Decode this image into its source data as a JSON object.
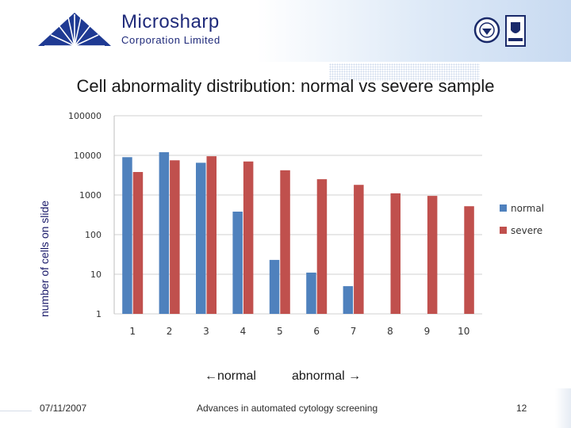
{
  "header": {
    "company_name": "Microsharp",
    "company_subtitle": "Corporation Limited"
  },
  "slide": {
    "title": "Cell abnormality distribution: normal vs severe sample",
    "x_caption_left": "←normal",
    "x_caption_right": "abnormal →"
  },
  "footer": {
    "date": "07/11/2007",
    "center_text": "Advances in automated cytology screening",
    "page_number": "12"
  },
  "chart_data": {
    "type": "bar",
    "title": "Cell abnormality distribution: normal vs severe sample",
    "ylabel": "number of cells on slide",
    "xlabel": "",
    "y_scale": "log",
    "ylim": [
      1,
      100000
    ],
    "y_ticks": [
      "1",
      "10",
      "100",
      "1000",
      "10000",
      "100000"
    ],
    "grid": "horizontal",
    "legend_position": "right",
    "categories": [
      "1",
      "2",
      "3",
      "4",
      "5",
      "6",
      "7",
      "8",
      "9",
      "10"
    ],
    "series": [
      {
        "name": "normal",
        "color": "#4f81bd",
        "values": [
          9000,
          12000,
          6500,
          380,
          23,
          11,
          5,
          0,
          0,
          0
        ]
      },
      {
        "name": "severe",
        "color": "#c0504d",
        "values": [
          3800,
          7500,
          9500,
          7000,
          4200,
          2500,
          1800,
          1100,
          950,
          520
        ]
      }
    ]
  }
}
